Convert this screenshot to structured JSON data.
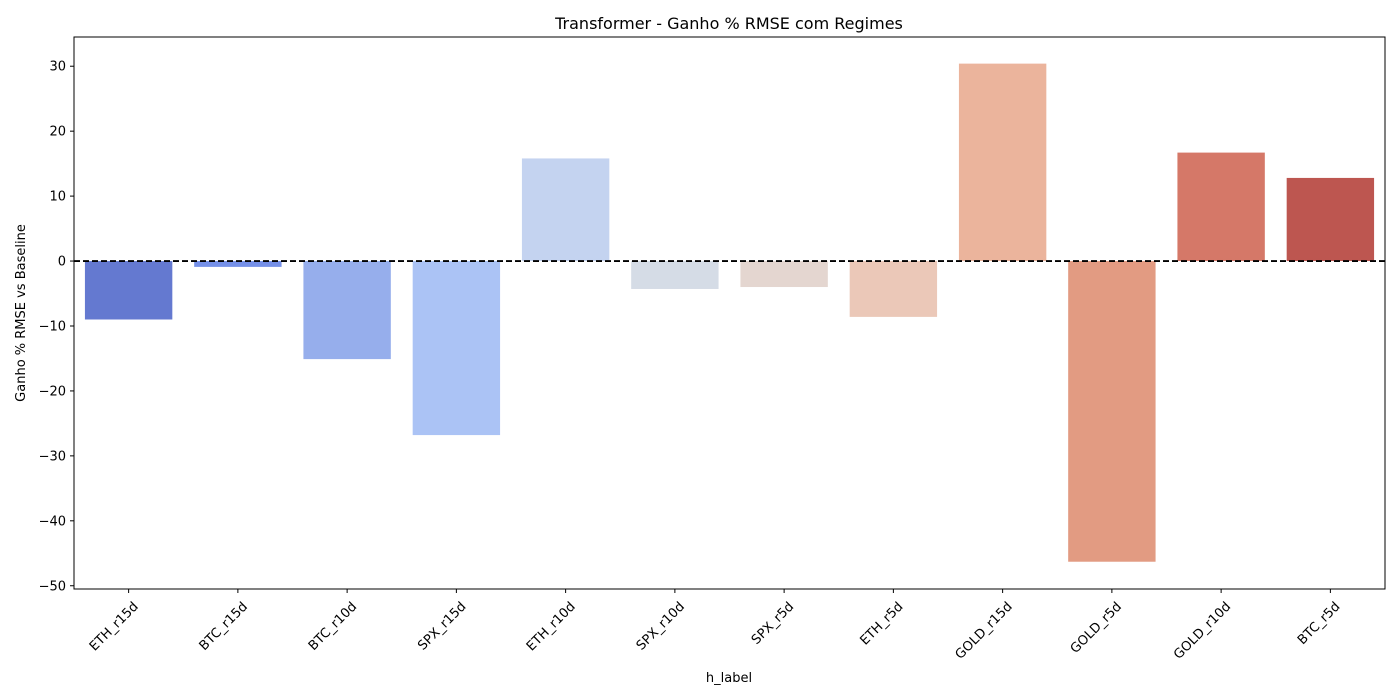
{
  "chart_data": {
    "type": "bar",
    "title": "Transformer - Ganho % RMSE com Regimes",
    "xlabel": "h_label",
    "ylabel": "Ganho % RMSE vs Baseline",
    "ylim": [
      -50.5,
      34.5
    ],
    "yticks": [
      -50,
      -40,
      -30,
      -20,
      -10,
      0,
      10,
      20,
      30
    ],
    "ytick_labels": [
      "−50",
      "−40",
      "−30",
      "−20",
      "−10",
      "0",
      "10",
      "20",
      "30"
    ],
    "reference_line": {
      "y": 0,
      "style": "dashed",
      "color": "#000000"
    },
    "grid": false,
    "legend": "none",
    "categories": [
      "ETH_r15d",
      "BTC_r15d",
      "BTC_r10d",
      "SPX_r15d",
      "ETH_r10d",
      "SPX_r10d",
      "SPX_r5d",
      "ETH_r5d",
      "GOLD_r15d",
      "GOLD_r5d",
      "GOLD_r10d",
      "BTC_r5d"
    ],
    "values": [
      -9.0,
      -0.9,
      -15.1,
      -26.8,
      15.8,
      -4.3,
      -4.0,
      -8.6,
      30.4,
      -46.3,
      16.7,
      12.8
    ],
    "colors": [
      "#6479d0",
      "#7590e8",
      "#96aeec",
      "#abc3f5",
      "#c4d3f0",
      "#d5dce6",
      "#e4d6d0",
      "#ebc8b8",
      "#ebb49c",
      "#e29b82",
      "#d57868",
      "#bd5650"
    ]
  }
}
